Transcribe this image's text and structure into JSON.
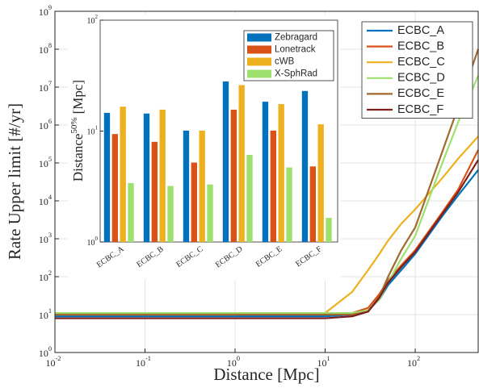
{
  "chart_data": [
    {
      "type": "line",
      "xlabel": "Distance [Mpc]",
      "ylabel": "Rate Upper limit [#/yr]",
      "x": [
        0.01,
        0.1,
        1,
        10,
        20,
        30,
        40,
        50,
        70,
        100,
        200,
        300,
        500
      ],
      "series": [
        {
          "name": "ECBC_A",
          "color": "#0072bd",
          "values": [
            9,
            9,
            9,
            9,
            10,
            13,
            25,
            60,
            150,
            400,
            4000,
            14000,
            65000
          ]
        },
        {
          "name": "ECBC_B",
          "color": "#d95319",
          "values": [
            10,
            10,
            10,
            10,
            11,
            15,
            35,
            80,
            200,
            500,
            5000,
            20000,
            220000
          ]
        },
        {
          "name": "ECBC_C",
          "color": "#edb120",
          "values": [
            10,
            10,
            10,
            11,
            40,
            150,
            400,
            900,
            2500,
            6000,
            40000,
            130000,
            500000
          ]
        },
        {
          "name": "ECBC_D",
          "color": "#9ee06e",
          "values": [
            11,
            11,
            11,
            11,
            11,
            13,
            25,
            70,
            300,
            1200,
            100000,
            1200000,
            20000000
          ]
        },
        {
          "name": "ECBC_E",
          "color": "#a0692f",
          "values": [
            10,
            10,
            10,
            10,
            10,
            12,
            30,
            100,
            500,
            2000,
            200000,
            3000000,
            100000000
          ]
        },
        {
          "name": "ECBC_F",
          "color": "#7e1e1e",
          "values": [
            8,
            8,
            8,
            8,
            9,
            12,
            28,
            70,
            180,
            450,
            4500,
            17000,
            120000
          ]
        }
      ],
      "xlim": [
        0.01,
        500
      ],
      "ylim": [
        1,
        1000000000
      ],
      "xticks": [
        {
          "value": 0.01,
          "label": [
            "10",
            "-2"
          ]
        },
        {
          "value": 0.1,
          "label": [
            "10",
            "-1"
          ]
        },
        {
          "value": 1,
          "label": [
            "10",
            "0"
          ]
        },
        {
          "value": 10,
          "label": [
            "10",
            "1"
          ]
        },
        {
          "value": 100,
          "label": [
            "10",
            "2"
          ]
        }
      ],
      "yticks": [
        {
          "value": 1,
          "label": [
            "10",
            "0"
          ]
        },
        {
          "value": 10,
          "label": [
            "10",
            "1"
          ]
        },
        {
          "value": 100,
          "label": [
            "10",
            "2"
          ]
        },
        {
          "value": 1000,
          "label": [
            "10",
            "3"
          ]
        },
        {
          "value": 10000,
          "label": [
            "10",
            "4"
          ]
        },
        {
          "value": 100000,
          "label": [
            "10",
            "5"
          ]
        },
        {
          "value": 1000000,
          "label": [
            "10",
            "6"
          ]
        },
        {
          "value": 10000000,
          "label": [
            "10",
            "7"
          ]
        },
        {
          "value": 100000000,
          "label": [
            "10",
            "8"
          ]
        },
        {
          "value": 1000000000,
          "label": [
            "10",
            "9"
          ]
        }
      ],
      "log_x": true,
      "log_y": true,
      "grid": true,
      "legend": "upper right"
    },
    {
      "type": "bar",
      "ylabel": {
        "text": "Distance",
        "superscript": "50%",
        "unit": "[Mpc]"
      },
      "categories": [
        "ECBC_A",
        "ECBC_B",
        "ECBC_C",
        "ECBC_D",
        "ECBC_E",
        "ECBC_F"
      ],
      "series": [
        {
          "name": "Zebragard",
          "color": "#0072bd",
          "values": [
            14.6,
            14.4,
            10.1,
            28,
            18.4,
            23
          ]
        },
        {
          "name": "Lonetrack",
          "color": "#d95319",
          "values": [
            9.4,
            8.0,
            5.2,
            15.6,
            10.1,
            4.8
          ]
        },
        {
          "name": "cWB",
          "color": "#edb120",
          "values": [
            16.6,
            15.6,
            10.1,
            26,
            17.5,
            11.5
          ]
        },
        {
          "name": "X-SphRad",
          "color": "#9ee06e",
          "values": [
            3.4,
            3.2,
            3.3,
            6.1,
            4.7,
            1.65
          ]
        }
      ],
      "ylim": [
        1,
        100
      ],
      "yticks": [
        {
          "value": 1,
          "label": [
            "10",
            "0"
          ]
        },
        {
          "value": 10,
          "label": [
            "10",
            "1"
          ]
        },
        {
          "value": 100,
          "label": [
            "10",
            "2"
          ]
        }
      ],
      "log_y": true,
      "legend": "upper right"
    }
  ]
}
